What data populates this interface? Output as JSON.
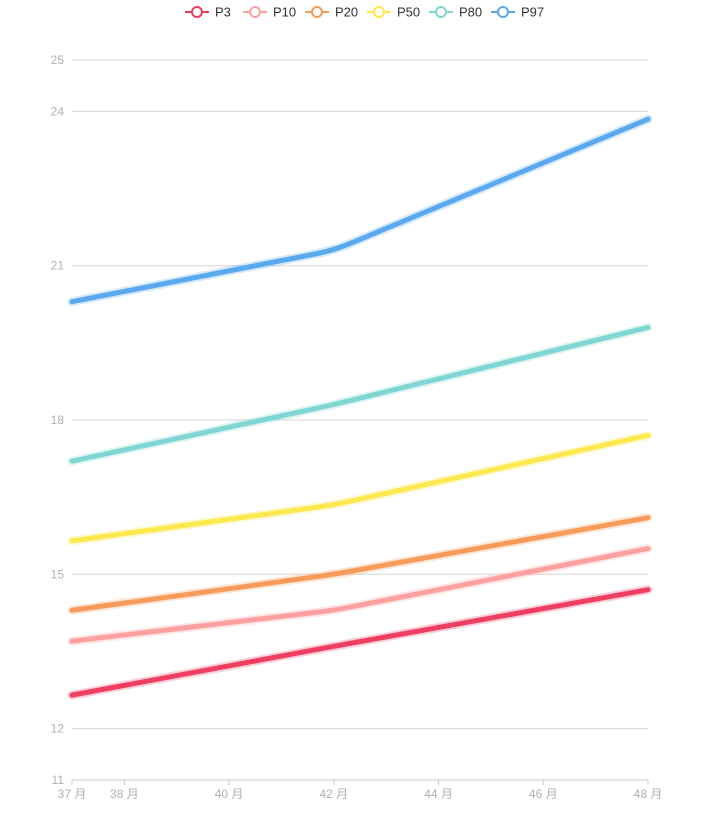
{
  "chart_data": {
    "type": "line",
    "x": [
      37,
      38,
      40,
      42,
      44,
      46,
      48
    ],
    "x_tick_labels": [
      "37 月",
      "38 月",
      "40 月",
      "42 月",
      "44 月",
      "46 月",
      "48 月"
    ],
    "y_ticks": [
      11,
      12,
      15,
      18,
      21,
      24,
      25
    ],
    "ylim": [
      11,
      25
    ],
    "xlim": [
      37,
      48
    ],
    "grid": true,
    "legend_position": "top-center",
    "series": [
      {
        "name": "P3",
        "color": "#ee3e61",
        "points": [
          [
            37,
            12.65
          ],
          [
            42,
            13.6
          ],
          [
            48,
            14.7
          ]
        ]
      },
      {
        "name": "P10",
        "color": "#ffa0a0",
        "points": [
          [
            37,
            13.7
          ],
          [
            42,
            14.3
          ],
          [
            48,
            15.5
          ]
        ]
      },
      {
        "name": "P20",
        "color": "#f89a5a",
        "points": [
          [
            37,
            14.3
          ],
          [
            42,
            15.0
          ],
          [
            48,
            16.1
          ]
        ]
      },
      {
        "name": "P50",
        "color": "#fce94f",
        "points": [
          [
            37,
            15.65
          ],
          [
            42,
            16.35
          ],
          [
            48,
            17.7
          ]
        ]
      },
      {
        "name": "P80",
        "color": "#7fd6d3",
        "points": [
          [
            37,
            17.2
          ],
          [
            42,
            18.3
          ],
          [
            48,
            19.8
          ]
        ]
      },
      {
        "name": "P97",
        "color": "#5aa9ee",
        "points": [
          [
            37,
            20.3
          ],
          [
            42,
            21.3
          ],
          [
            48,
            23.85
          ]
        ]
      }
    ]
  }
}
